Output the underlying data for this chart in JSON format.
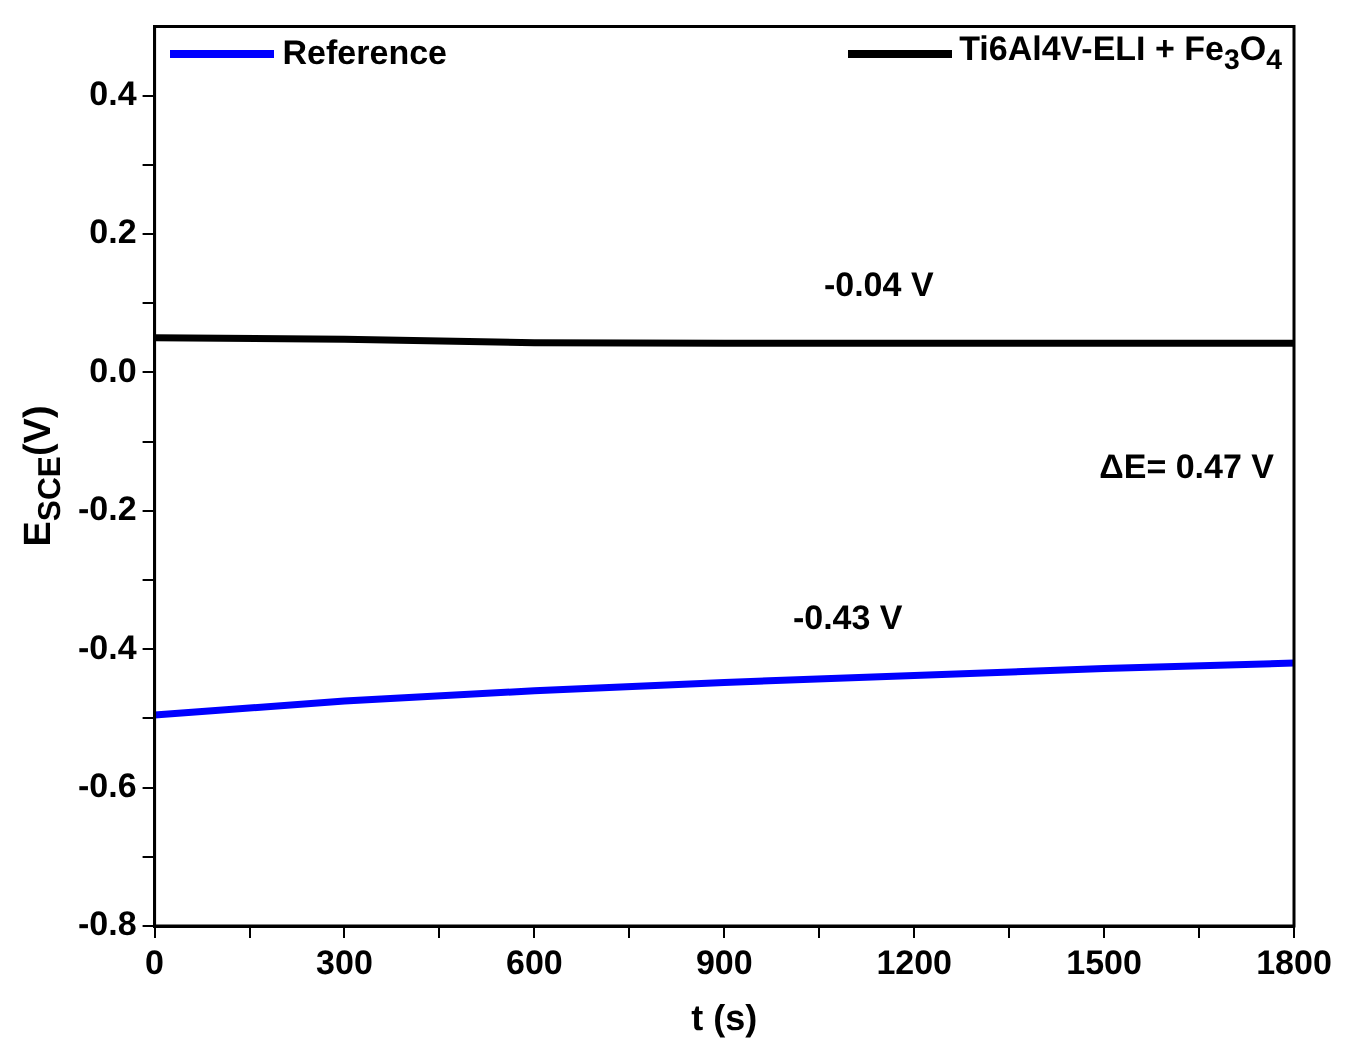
{
  "chart_data": {
    "type": "line",
    "xlabel": "t (s)",
    "ylabel": "E$_{SCE}$(V)",
    "xlim": [
      0,
      1800
    ],
    "xticks": [
      0,
      {
        "value": 150,
        "label": null
      },
      300,
      {
        "value": 450,
        "label": null
      },
      600,
      {
        "value": 750,
        "label": null
      },
      900,
      {
        "value": 1050,
        "label": null
      },
      1200,
      {
        "value": 1350,
        "label": null
      },
      1500,
      {
        "value": 1650,
        "label": null
      },
      1800
    ],
    "ylim": [
      -0.8,
      0.5
    ],
    "yticks": [
      -0.8,
      {
        "value": -0.7,
        "label": null
      },
      -0.6,
      {
        "value": -0.5,
        "label": null
      },
      -0.4,
      {
        "value": -0.3,
        "label": null
      },
      -0.2,
      {
        "value": -0.1,
        "label": null
      },
      {
        "value": 0,
        "label": "0.0"
      },
      {
        "value": 0.1,
        "label": null
      },
      0.2,
      {
        "value": 0.3,
        "label": null
      },
      0.4
    ],
    "x": [
      0,
      300,
      600,
      900,
      1200,
      1500,
      1800
    ],
    "series": [
      {
        "name": "Reference",
        "color": "#0000ff",
        "values": [
          -0.495,
          -0.475,
          -0.46,
          -0.448,
          -0.438,
          -0.428,
          -0.42
        ]
      },
      {
        "name": "Ti6Al4V-ELI + Fe$_{3}$O$_{4}$",
        "color": "#000000",
        "values": [
          0.05,
          0.048,
          0.043,
          0.042,
          0.042,
          0.042,
          0.042
        ]
      }
    ],
    "annotations": [
      {
        "text": "-0.04 V",
        "x": 1144,
        "y": 0.042
      },
      {
        "text": "-0.43 V",
        "x": 1095,
        "y": -0.44
      },
      "ΔE= 0.47 V"
    ],
    "legend": "top",
    "grid": false,
    "marker": "none",
    "line_style": "solid"
  }
}
